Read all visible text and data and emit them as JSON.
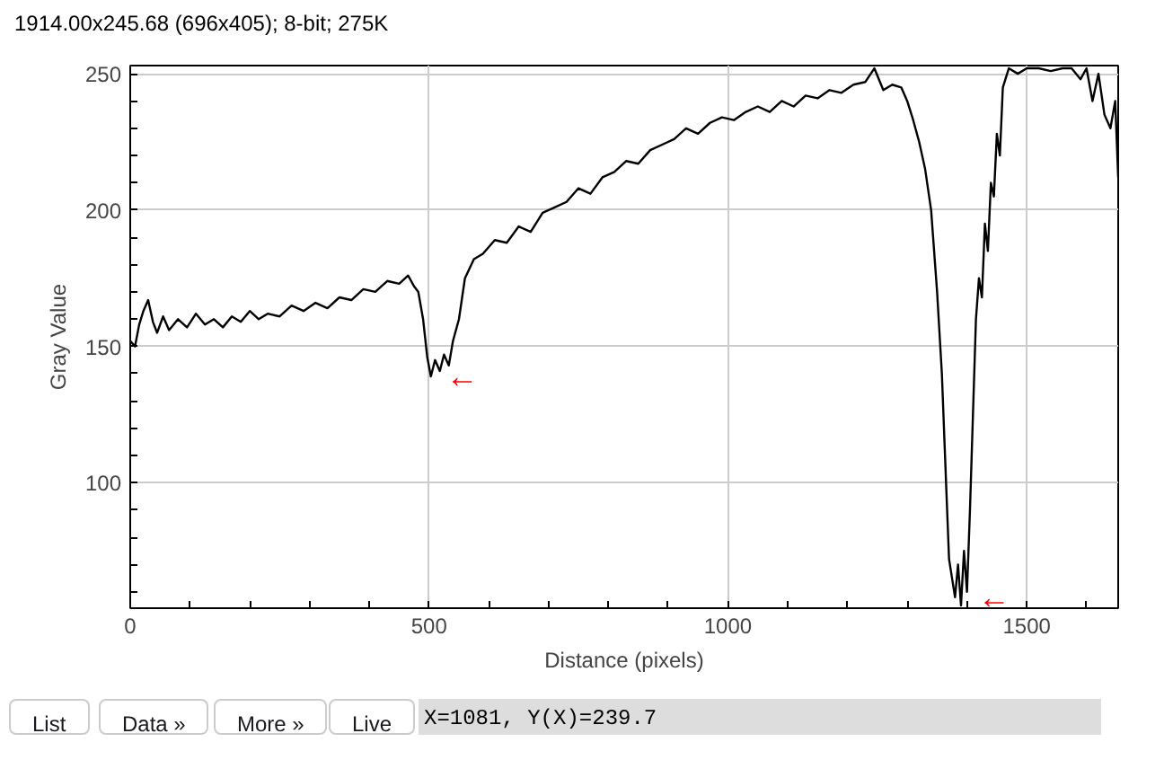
{
  "chart_data": {
    "type": "line",
    "xlabel": "Distance (pixels)",
    "ylabel": "Gray Value",
    "annotations": [
      "1914.00x245.68  (696x405); 8-bit; 275K",
      "List",
      "Data »",
      "More »",
      "Live",
      "X=1081, Y(X)=239.7",
      {
        "text": "←",
        "x": 510,
        "y": 139
      },
      {
        "text": "←",
        "x": 1400,
        "y": 58
      }
    ],
    "x": [
      0,
      8,
      15,
      22,
      30,
      38,
      45,
      55,
      65,
      80,
      95,
      110,
      125,
      140,
      155,
      170,
      185,
      200,
      215,
      230,
      250,
      270,
      290,
      310,
      330,
      350,
      370,
      390,
      410,
      430,
      450,
      465,
      475,
      482,
      490,
      497,
      503,
      510,
      518,
      525,
      533,
      540,
      550,
      560,
      575,
      590,
      610,
      630,
      650,
      670,
      690,
      710,
      730,
      750,
      770,
      790,
      810,
      830,
      850,
      870,
      890,
      910,
      930,
      950,
      970,
      990,
      1010,
      1030,
      1050,
      1070,
      1090,
      1110,
      1130,
      1150,
      1170,
      1190,
      1210,
      1230,
      1245,
      1260,
      1275,
      1290,
      1300,
      1310,
      1320,
      1330,
      1340,
      1350,
      1358,
      1365,
      1370,
      1375,
      1380,
      1385,
      1390,
      1395,
      1400,
      1405,
      1410,
      1415,
      1420,
      1425,
      1430,
      1435,
      1440,
      1445,
      1450,
      1455,
      1460,
      1470,
      1485,
      1500,
      1520,
      1540,
      1560,
      1575,
      1590,
      1600,
      1610,
      1620,
      1630,
      1640,
      1648,
      1653
    ],
    "values": [
      152,
      150,
      158,
      163,
      167,
      159,
      155,
      161,
      156,
      160,
      157,
      162,
      158,
      160,
      157,
      161,
      159,
      163,
      160,
      162,
      161,
      165,
      163,
      166,
      164,
      168,
      167,
      171,
      170,
      174,
      173,
      176,
      172,
      170,
      160,
      146,
      139,
      145,
      141,
      147,
      143,
      152,
      160,
      175,
      182,
      184,
      189,
      188,
      194,
      192,
      199,
      201,
      203,
      208,
      206,
      212,
      214,
      218,
      217,
      222,
      224,
      226,
      230,
      228,
      232,
      234,
      233,
      236,
      238,
      236,
      240,
      238,
      242,
      241,
      244,
      243,
      246,
      247,
      252,
      244,
      246,
      245,
      240,
      233,
      225,
      215,
      200,
      170,
      140,
      100,
      72,
      65,
      58,
      70,
      55,
      75,
      60,
      90,
      125,
      160,
      175,
      168,
      195,
      185,
      210,
      205,
      228,
      220,
      245,
      252,
      250,
      252,
      252,
      251,
      252,
      252,
      248,
      252,
      240,
      250,
      235,
      230,
      240,
      212
    ],
    "xlim": [
      0,
      1653
    ],
    "ylim": [
      54,
      253
    ],
    "xticks": [
      0,
      {
        "value": 100,
        "label": null
      },
      {
        "value": 200,
        "label": null
      },
      {
        "value": 300,
        "label": null
      },
      {
        "value": 400,
        "label": null
      },
      500,
      {
        "value": 600,
        "label": null
      },
      {
        "value": 700,
        "label": null
      },
      {
        "value": 800,
        "label": null
      },
      {
        "value": 900,
        "label": null
      },
      1000,
      {
        "value": 1100,
        "label": null
      },
      {
        "value": 1200,
        "label": null
      },
      {
        "value": 1300,
        "label": null
      },
      {
        "value": 1400,
        "label": null
      },
      1500,
      {
        "value": 1600,
        "label": null
      }
    ],
    "yticks": [
      {
        "value": 60,
        "label": null
      },
      {
        "value": 70,
        "label": null
      },
      {
        "value": 80,
        "label": null
      },
      {
        "value": 90,
        "label": null
      },
      100,
      {
        "value": 110,
        "label": null
      },
      {
        "value": 120,
        "label": null
      },
      {
        "value": 130,
        "label": null
      },
      {
        "value": 140,
        "label": null
      },
      150,
      {
        "value": 160,
        "label": null
      },
      {
        "value": 170,
        "label": null
      },
      {
        "value": 180,
        "label": null
      },
      {
        "value": 190,
        "label": null
      },
      200,
      {
        "value": 210,
        "label": null
      },
      {
        "value": 220,
        "label": null
      },
      {
        "value": 230,
        "label": null
      },
      {
        "value": 240,
        "label": null
      },
      250
    ],
    "grid": true,
    "color": "#000000"
  }
}
